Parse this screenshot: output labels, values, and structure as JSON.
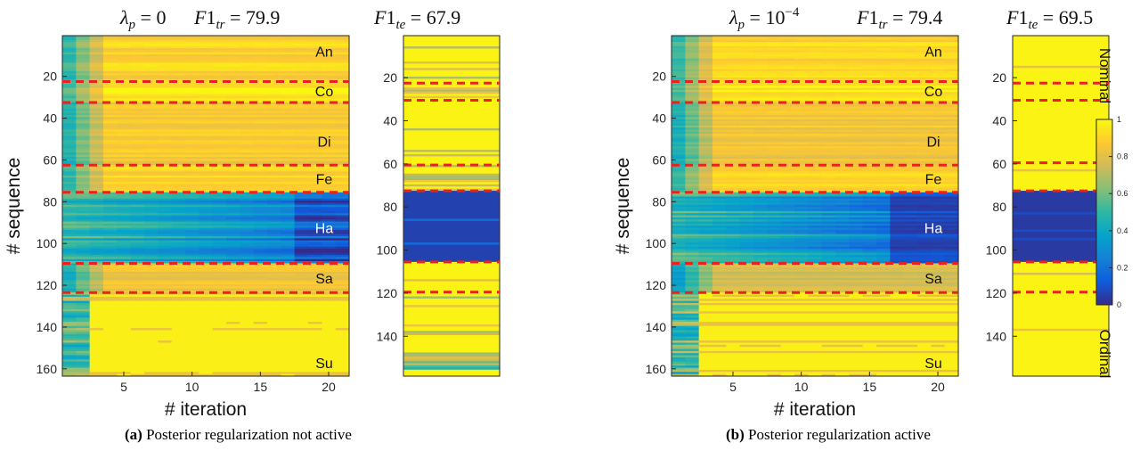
{
  "chart_data": {
    "type": "heatmap",
    "colormap": "parula",
    "panels": [
      {
        "id": "a",
        "caption_label": "(a)",
        "caption_text": "Posterior regularization not active",
        "lambda_text": "λp = 0",
        "f1_train_text": "F1tr = 79.9",
        "f1_test_text": "F1te = 67.9",
        "lambda_p": "0",
        "f1_train": 79.9,
        "f1_test": 67.9,
        "train": {
          "xlabel": "# iteration",
          "ylabel": "# sequence",
          "x_ticks": [
            5,
            10,
            15,
            20
          ],
          "y_ticks": [
            20,
            40,
            60,
            80,
            100,
            120,
            140,
            160
          ],
          "n_iterations": 21,
          "n_sequences": 163,
          "class_boundaries": [
            22,
            32,
            62,
            75,
            109,
            123
          ],
          "classes": [
            {
              "label": "An",
              "start": 1,
              "end": 22,
              "value": 0.9
            },
            {
              "label": "Co",
              "start": 23,
              "end": 32,
              "value": 0.95
            },
            {
              "label": "Di",
              "start": 33,
              "end": 62,
              "value": 0.86
            },
            {
              "label": "Fe",
              "start": 63,
              "end": 75,
              "value": 0.9
            },
            {
              "label": "Ha",
              "start": 76,
              "end": 109,
              "value": 0.42
            },
            {
              "label": "Sa",
              "start": 110,
              "end": 123,
              "value": 0.85
            },
            {
              "label": "Su",
              "start": 124,
              "end": 163,
              "value": 0.98
            }
          ]
        },
        "test": {
          "y_ticks": [
            20,
            40,
            60,
            80,
            100,
            120,
            140
          ],
          "n_sequences": 158,
          "class_boundaries": [
            22,
            30,
            60,
            72,
            105,
            119
          ],
          "middle_value": 0.06
        }
      },
      {
        "id": "b",
        "caption_label": "(b)",
        "caption_text": "Posterior regularization active",
        "lambda_text": "λp = 10−4",
        "f1_train_text": "F1tr = 79.4",
        "f1_test_text": "F1te = 69.5",
        "lambda_p": "10^-4",
        "f1_train": 79.4,
        "f1_test": 69.5,
        "train": {
          "xlabel": "# iteration",
          "ylabel": "# sequence",
          "x_ticks": [
            5,
            10,
            15,
            20
          ],
          "y_ticks": [
            20,
            40,
            60,
            80,
            100,
            120,
            140,
            160
          ],
          "n_iterations": 21,
          "n_sequences": 163,
          "class_boundaries": [
            22,
            32,
            62,
            75,
            109,
            123
          ],
          "classes": [
            {
              "label": "An",
              "start": 1,
              "end": 22,
              "value": 0.9
            },
            {
              "label": "Co",
              "start": 23,
              "end": 32,
              "value": 0.95
            },
            {
              "label": "Di",
              "start": 33,
              "end": 62,
              "value": 0.86
            },
            {
              "label": "Fe",
              "start": 63,
              "end": 75,
              "value": 0.9
            },
            {
              "label": "Ha",
              "start": 76,
              "end": 109,
              "value": 0.3
            },
            {
              "label": "Sa",
              "start": 110,
              "end": 123,
              "value": 0.8
            },
            {
              "label": "Su",
              "start": 124,
              "end": 163,
              "value": 0.98
            }
          ]
        },
        "test": {
          "y_ticks": [
            20,
            40,
            60,
            80,
            100,
            120,
            140
          ],
          "n_sequences": 158,
          "class_boundaries": [
            22,
            30,
            59,
            72,
            105,
            119
          ],
          "middle_value": 0.04
        }
      }
    ],
    "colorbar": {
      "ticks": [
        0,
        0.2,
        0.4,
        0.6,
        0.8,
        1
      ],
      "tick_labels": [
        "0",
        "0.2",
        "0.4",
        "0.6",
        "0.8",
        "1"
      ],
      "top_label": "Nominal",
      "bottom_label": "Ordinal",
      "range": [
        0,
        1
      ]
    },
    "colors": {
      "parula": [
        "#352a87",
        "#0f5cdd",
        "#1481d6",
        "#06a4ca",
        "#2eb7a4",
        "#87bf77",
        "#d1bb59",
        "#fec832",
        "#f9fb0e"
      ],
      "boundary_line": "#e8221c"
    }
  }
}
